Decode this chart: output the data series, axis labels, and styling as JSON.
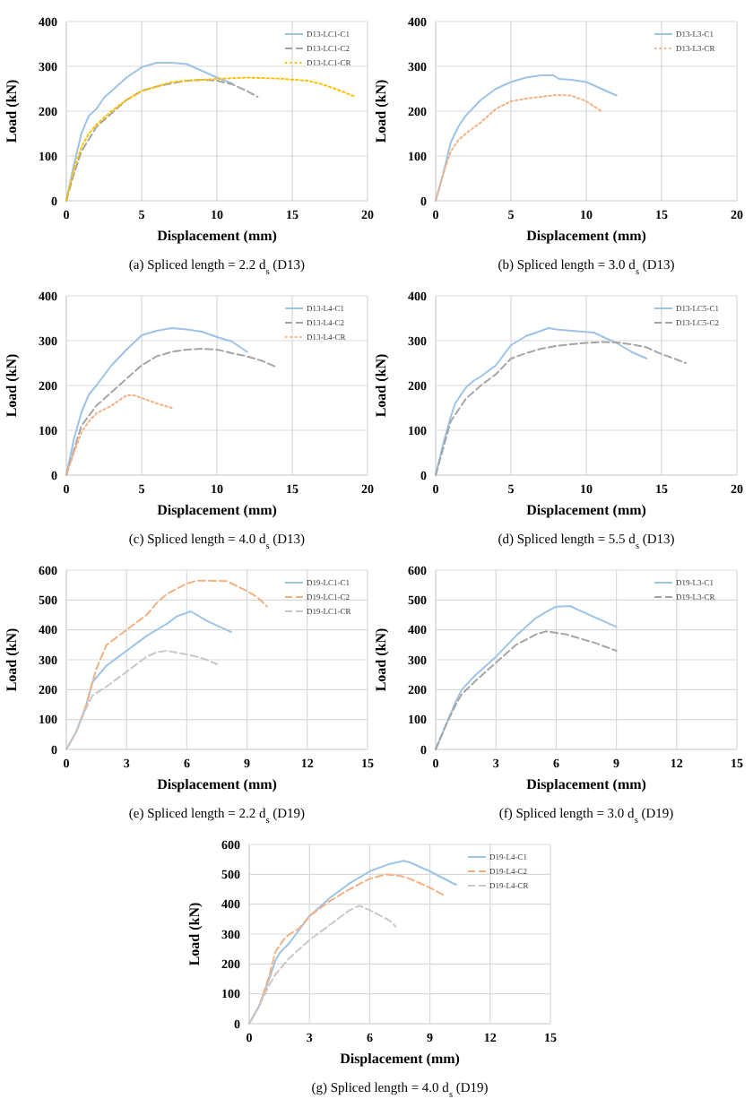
{
  "chart_data": [
    {
      "type": "line",
      "title": "(a) Spliced length = 2.2 d$_{s}$ (D13)",
      "xlabel": "Displacement (mm)",
      "ylabel": "Load (kN)",
      "xlim": [
        0,
        20
      ],
      "ylim": [
        0,
        400
      ],
      "xticks": [
        0,
        5,
        10,
        15,
        20
      ],
      "yticks": [
        0,
        100,
        200,
        300,
        400
      ],
      "grid": true,
      "legend": "top right",
      "series": [
        {
          "name": "D13-LC1-C1",
          "color": "#9dc3e6",
          "line_style": "solid",
          "x": [
            0,
            0.5,
            1,
            1.5,
            2,
            2.5,
            3,
            4,
            5,
            6,
            7,
            8,
            9,
            10,
            11
          ],
          "values": [
            0,
            80,
            150,
            190,
            205,
            230,
            245,
            275,
            298,
            308,
            308,
            305,
            290,
            275,
            262
          ]
        },
        {
          "name": "D13-LC1-C2",
          "color": "#a5a5a5",
          "line_style": "dashed",
          "x": [
            0,
            0.5,
            1,
            2,
            3,
            4,
            5,
            6,
            7,
            8,
            9,
            10,
            11,
            12,
            12.7
          ],
          "values": [
            0,
            60,
            110,
            165,
            195,
            225,
            245,
            255,
            262,
            268,
            270,
            268,
            260,
            245,
            232
          ]
        },
        {
          "name": "D13-LC1-CR",
          "color": "#ffc000",
          "line_style": "dotted",
          "x": [
            0,
            0.5,
            1,
            1.5,
            2,
            3,
            4,
            5,
            6,
            7,
            8,
            10,
            12,
            14,
            16,
            17,
            18,
            19.2
          ],
          "values": [
            0,
            70,
            120,
            150,
            170,
            200,
            225,
            245,
            255,
            265,
            268,
            272,
            275,
            273,
            268,
            260,
            248,
            232
          ]
        }
      ]
    },
    {
      "type": "line",
      "title": "(b) Spliced length = 3.0 d$_{s}$ (D13)",
      "xlabel": "Displacement (mm)",
      "ylabel": "Load (kN)",
      "xlim": [
        0,
        20
      ],
      "ylim": [
        0,
        400
      ],
      "xticks": [
        0,
        5,
        10,
        15,
        20
      ],
      "yticks": [
        0,
        100,
        200,
        300,
        400
      ],
      "grid": true,
      "legend": "top right",
      "series": [
        {
          "name": "D13-L3-C1",
          "color": "#9dc3e6",
          "line_style": "solid",
          "x": [
            0,
            0.5,
            1,
            1.5,
            2,
            3,
            4,
            5,
            6,
            7,
            7.8,
            8.2,
            9,
            10,
            11,
            12
          ],
          "values": [
            0,
            60,
            130,
            165,
            190,
            225,
            250,
            265,
            275,
            280,
            280,
            272,
            270,
            265,
            250,
            235
          ]
        },
        {
          "name": "D13-L3-CR",
          "color": "#f4b183",
          "line_style": "dotted",
          "x": [
            0,
            0.5,
            1,
            1.5,
            2,
            3,
            4,
            5,
            6,
            7,
            8,
            9,
            10,
            11
          ],
          "values": [
            0,
            60,
            110,
            135,
            150,
            175,
            205,
            222,
            228,
            232,
            236,
            235,
            222,
            200
          ]
        }
      ]
    },
    {
      "type": "line",
      "title": "(c) Spliced length = 4.0 d$_{s}$ (D13)",
      "xlabel": "Displacement (mm)",
      "ylabel": "Load (kN)",
      "xlim": [
        0,
        20
      ],
      "ylim": [
        0,
        400
      ],
      "xticks": [
        0,
        5,
        10,
        15,
        20
      ],
      "yticks": [
        0,
        100,
        200,
        300,
        400
      ],
      "grid": true,
      "legend": "top right",
      "series": [
        {
          "name": "D13-L4-C1",
          "color": "#9dc3e6",
          "line_style": "solid",
          "x": [
            0,
            0.5,
            1,
            1.5,
            2,
            3,
            4,
            5,
            6,
            7,
            8,
            9,
            10,
            11,
            12
          ],
          "values": [
            0,
            80,
            140,
            180,
            200,
            245,
            280,
            312,
            322,
            328,
            325,
            320,
            308,
            298,
            275
          ]
        },
        {
          "name": "D13-L4-C2",
          "color": "#a5a5a5",
          "line_style": "dashed",
          "x": [
            0,
            1,
            2,
            3,
            4,
            5,
            6,
            7,
            8,
            9,
            10,
            11,
            12,
            13,
            14
          ],
          "values": [
            0,
            110,
            155,
            185,
            215,
            245,
            265,
            275,
            280,
            282,
            280,
            272,
            265,
            255,
            240
          ]
        },
        {
          "name": "D13-L4-CR",
          "color": "#f4b183",
          "line_style": "dotted",
          "x": [
            0,
            0.5,
            1,
            1.5,
            2,
            3,
            4,
            4.5,
            5,
            6,
            7
          ],
          "values": [
            0,
            50,
            95,
            120,
            138,
            155,
            178,
            178,
            172,
            160,
            150
          ]
        }
      ]
    },
    {
      "type": "line",
      "title": "(d) Spliced length = 5.5 d$_{s}$ (D13)",
      "xlabel": "Displacement (mm)",
      "ylabel": "Load (kN)",
      "xlim": [
        0,
        20
      ],
      "ylim": [
        0,
        400
      ],
      "xticks": [
        0,
        5,
        10,
        15,
        20
      ],
      "yticks": [
        0,
        100,
        200,
        300,
        400
      ],
      "grid": true,
      "legend": "top right",
      "series": [
        {
          "name": "D13-LC5-C1",
          "color": "#9dc3e6",
          "line_style": "solid",
          "x": [
            0,
            0.5,
            1,
            1.3,
            2,
            2.5,
            3,
            4,
            5,
            6,
            7,
            7.5,
            8,
            9,
            10.5,
            11,
            12,
            13,
            14
          ],
          "values": [
            0,
            70,
            130,
            160,
            195,
            210,
            220,
            245,
            290,
            310,
            322,
            328,
            325,
            322,
            318,
            310,
            295,
            275,
            260
          ]
        },
        {
          "name": "D13-LC5-C2",
          "color": "#a5a5a5",
          "line_style": "dashed",
          "x": [
            0,
            1,
            2,
            3,
            4,
            5,
            6,
            7,
            8,
            9,
            10,
            11,
            12,
            13,
            14,
            15,
            16,
            16.6
          ],
          "values": [
            0,
            120,
            170,
            200,
            225,
            260,
            272,
            282,
            288,
            292,
            295,
            297,
            296,
            292,
            285,
            270,
            258,
            250
          ]
        }
      ]
    },
    {
      "type": "line",
      "title": "(e) Spliced length = 2.2 d$_{s}$ (D19)",
      "xlabel": "Displacement (mm)",
      "ylabel": "Load (kN)",
      "xlim": [
        0,
        15
      ],
      "ylim": [
        0,
        600
      ],
      "xticks": [
        0,
        3,
        6,
        9,
        12,
        15
      ],
      "yticks": [
        0,
        100,
        200,
        300,
        400,
        500,
        600
      ],
      "grid": true,
      "legend": "top right",
      "series": [
        {
          "name": "D19-LC1-C1",
          "color": "#9dc3e6",
          "line_style": "solid",
          "x": [
            0,
            0.5,
            1,
            1.3,
            2,
            3,
            4,
            5,
            5.5,
            6.2,
            7,
            8.2
          ],
          "values": [
            0,
            60,
            150,
            225,
            280,
            330,
            380,
            420,
            445,
            462,
            430,
            393
          ]
        },
        {
          "name": "D19-LC1-C2",
          "color": "#f4b183",
          "line_style": "dashed",
          "x": [
            0,
            0.5,
            1,
            1.3,
            1.5,
            2,
            3,
            4,
            4.5,
            5,
            6,
            6.5,
            7,
            8,
            9,
            9.5,
            10
          ],
          "values": [
            0,
            60,
            150,
            225,
            270,
            350,
            400,
            450,
            490,
            520,
            555,
            565,
            565,
            563,
            530,
            510,
            478
          ]
        },
        {
          "name": "D19-LC1-CR",
          "color": "#c9c9c9",
          "line_style": "dashed",
          "x": [
            0,
            0.5,
            1,
            1.3,
            2,
            3,
            4,
            4.5,
            5,
            6,
            6.5,
            7,
            7.5
          ],
          "values": [
            0,
            60,
            140,
            180,
            210,
            260,
            310,
            325,
            330,
            318,
            310,
            300,
            285
          ]
        }
      ]
    },
    {
      "type": "line",
      "title": "(f) Spliced length = 3.0 d$_{s}$ (D19)",
      "xlabel": "Displacement (mm)",
      "ylabel": "Load (kN)",
      "xlim": [
        0,
        15
      ],
      "ylim": [
        0,
        600
      ],
      "xticks": [
        0,
        3,
        6,
        9,
        12,
        15
      ],
      "yticks": [
        0,
        100,
        200,
        300,
        400,
        500,
        600
      ],
      "grid": true,
      "legend": "top right",
      "series": [
        {
          "name": "D19-L3-C1",
          "color": "#9dc3e6",
          "line_style": "solid",
          "x": [
            0,
            0.5,
            1,
            1.3,
            2,
            3,
            4,
            5,
            5.5,
            6,
            6.7,
            7,
            8,
            9
          ],
          "values": [
            0,
            80,
            160,
            200,
            250,
            310,
            380,
            440,
            460,
            478,
            480,
            470,
            440,
            410
          ]
        },
        {
          "name": "D19-L3-CR",
          "color": "#a5a5a5",
          "line_style": "dashed",
          "x": [
            0,
            0.5,
            1,
            1.3,
            2,
            3,
            4,
            5,
            5.5,
            6,
            6.5,
            7,
            8,
            9
          ],
          "values": [
            0,
            80,
            150,
            185,
            230,
            290,
            350,
            385,
            395,
            390,
            385,
            375,
            355,
            330
          ]
        }
      ]
    },
    {
      "type": "line",
      "title": "(g) Spliced length = 4.0 d$_{s}$ (D19)",
      "xlabel": "Displacement (mm)",
      "ylabel": "Load (kN)",
      "xlim": [
        0,
        15
      ],
      "ylim": [
        0,
        600
      ],
      "xticks": [
        0,
        3,
        6,
        9,
        12,
        15
      ],
      "yticks": [
        0,
        100,
        200,
        300,
        400,
        500,
        600
      ],
      "grid": true,
      "legend": "top right",
      "series": [
        {
          "name": "D19-L4-C1",
          "color": "#9dc3e6",
          "line_style": "solid",
          "x": [
            0,
            0.5,
            1,
            1.3,
            1.5,
            2,
            3,
            4,
            5,
            6,
            7,
            7.7,
            8,
            9,
            10.3
          ],
          "values": [
            0,
            60,
            150,
            210,
            235,
            270,
            360,
            420,
            470,
            510,
            535,
            545,
            540,
            510,
            465
          ]
        },
        {
          "name": "D19-L4-C2",
          "color": "#f4b183",
          "line_style": "dashed",
          "x": [
            0,
            0.5,
            1,
            1.3,
            1.8,
            2.5,
            3,
            4,
            5,
            6,
            6.8,
            7.5,
            8,
            9,
            9.7
          ],
          "values": [
            0,
            60,
            160,
            240,
            290,
            320,
            360,
            410,
            450,
            485,
            500,
            495,
            485,
            455,
            430
          ]
        },
        {
          "name": "D19-L4-CR",
          "color": "#c9c9c9",
          "line_style": "dashed",
          "x": [
            0,
            0.5,
            1,
            1.3,
            2,
            3,
            4,
            5,
            5.5,
            6,
            7,
            7.3
          ],
          "values": [
            0,
            60,
            130,
            165,
            220,
            280,
            330,
            380,
            395,
            380,
            345,
            325
          ]
        }
      ]
    }
  ]
}
